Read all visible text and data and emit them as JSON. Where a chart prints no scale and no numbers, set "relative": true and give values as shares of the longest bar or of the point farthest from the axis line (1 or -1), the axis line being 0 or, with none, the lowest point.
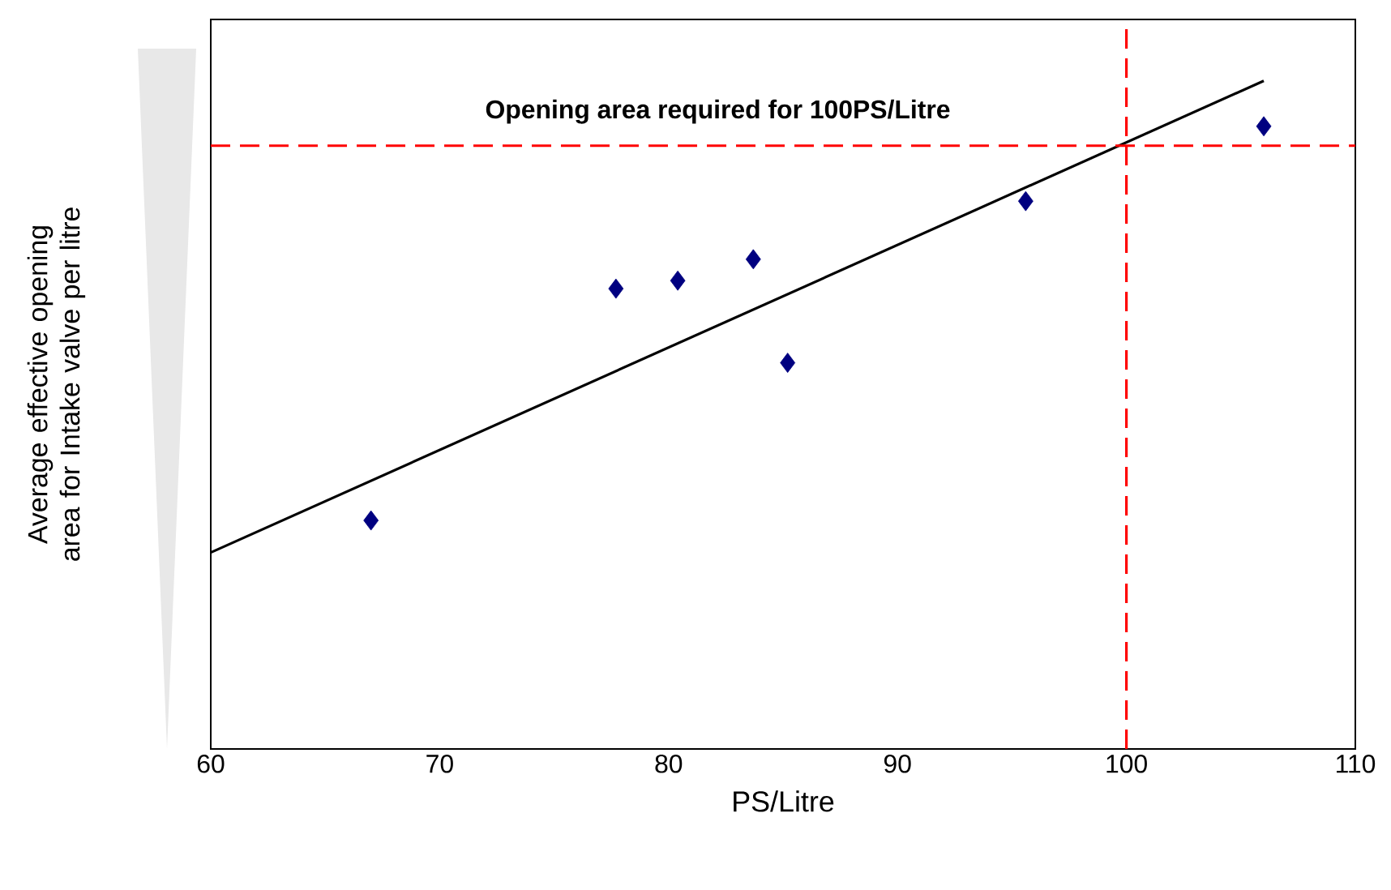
{
  "chart_data": {
    "type": "scatter",
    "xlabel": "PS/Litre",
    "ylabel": "Average effective opening area for Intake valve per litre",
    "relative": true,
    "xlim": [
      60,
      110
    ],
    "xticks": [
      60,
      70,
      80,
      90,
      100,
      110
    ],
    "series": [
      {
        "type": "scatter",
        "color": "#000080",
        "marker": "diamond",
        "x": [
          67,
          77.7,
          80.4,
          83.7,
          85.2,
          95.6,
          106
        ],
        "values": [
          0.342,
          0.689,
          0.701,
          0.733,
          0.578,
          0.82,
          0.932
        ]
      },
      {
        "type": "line",
        "color": "#000000",
        "marker": "none",
        "line_style": "solid",
        "x": [
          60,
          106
        ],
        "values": [
          0.294,
          1
        ]
      }
    ],
    "ref_lines": [
      {
        "axis": "y",
        "value": 0.903,
        "label": "Opening area required for 100PS/Litre",
        "color": "#ff0000",
        "line_style": "dashed"
      },
      {
        "axis": "x",
        "value": 100,
        "color": "#ff0000",
        "line_style": "dashed"
      }
    ]
  }
}
